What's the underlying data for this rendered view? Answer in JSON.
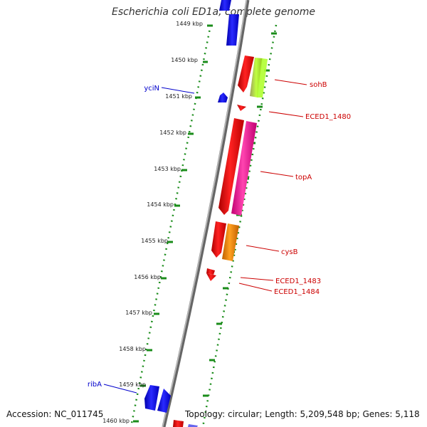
{
  "title": "Escherichia coli ED1a, complete genome",
  "accession": "Accession: NC_011745",
  "topology": "Topology: circular; Length: 5,209,548 bp; Genes: 5,118",
  "ticks": [
    "1449 kbp",
    "1450 kbp",
    "1451 kbp",
    "1452 kbp",
    "1453 kbp",
    "1454 kbp",
    "1455 kbp",
    "1456 kbp",
    "1457 kbp",
    "1458 kbp",
    "1459 kbp",
    "1460 kbp"
  ],
  "labels": [
    {
      "name": "sohB",
      "color": "#cc0000"
    },
    {
      "name": "ECED1_1480",
      "color": "#cc0000"
    },
    {
      "name": "topA",
      "color": "#cc0000"
    },
    {
      "name": "cysB",
      "color": "#cc0000"
    },
    {
      "name": "ECED1_1483",
      "color": "#cc0000"
    },
    {
      "name": "ECED1_1484",
      "color": "#cc0000"
    },
    {
      "name": "yciN",
      "color": "#0000cc"
    },
    {
      "name": "ribA",
      "color": "#0000cc"
    }
  ],
  "colors": {
    "forward_cds": "#ff0000",
    "reverse_cds": "#0000ff",
    "backbone": "#888888",
    "tick": "#228b22",
    "topA_feature": "#ff33aa",
    "cysB_feature": "#ff9900",
    "sohB_feature": "#aadd33"
  }
}
